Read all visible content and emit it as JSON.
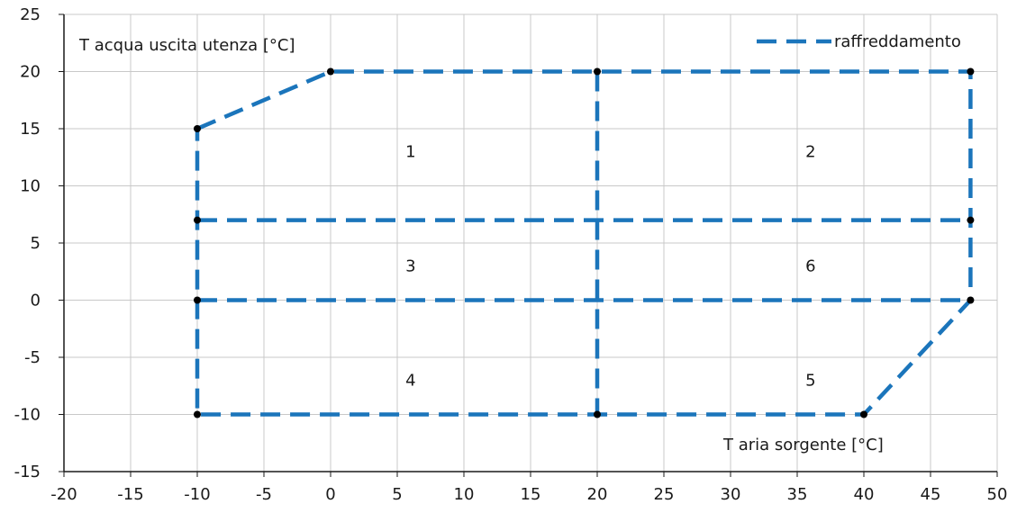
{
  "chart_data": {
    "type": "line",
    "xlabel": "T aria sorgente [°C]",
    "ylabel": "T acqua uscita utenza [°C]",
    "xlim": [
      -20,
      50
    ],
    "ylim": [
      -15,
      25
    ],
    "x_ticks": [
      -20,
      -15,
      -10,
      -5,
      0,
      5,
      10,
      15,
      20,
      25,
      30,
      35,
      40,
      45,
      50
    ],
    "x_tick_labels": [
      "-20",
      "-15",
      "-10",
      "-5",
      "0",
      "5",
      "10",
      "15",
      "20",
      "25",
      "30",
      "35",
      "40",
      "45",
      "50"
    ],
    "y_ticks": [
      -15,
      -10,
      -5,
      0,
      5,
      10,
      15,
      20,
      25
    ],
    "y_tick_labels": [
      "-15",
      "-10",
      "-5",
      "0",
      "5",
      "10",
      "15",
      "20",
      "25"
    ],
    "grid": true,
    "legend_position": "top-right",
    "series": [
      {
        "name": "raffreddamento",
        "color": "#1b75bb",
        "style": "dashed",
        "segments": [
          [
            [
              -10,
              15
            ],
            [
              0,
              20
            ],
            [
              48,
              20
            ],
            [
              48,
              0
            ],
            [
              40,
              -10
            ],
            [
              -10,
              -10
            ],
            [
              -10,
              15
            ]
          ],
          [
            [
              -10,
              7
            ],
            [
              48,
              7
            ]
          ],
          [
            [
              -10,
              0
            ],
            [
              48,
              0
            ]
          ],
          [
            [
              20,
              20
            ],
            [
              20,
              -10
            ]
          ]
        ],
        "markers": [
          [
            -10,
            15
          ],
          [
            0,
            20
          ],
          [
            20,
            20
          ],
          [
            48,
            20
          ],
          [
            -10,
            7
          ],
          [
            48,
            7
          ],
          [
            -10,
            0
          ],
          [
            48,
            0
          ],
          [
            -10,
            -10
          ],
          [
            20,
            -10
          ],
          [
            40,
            -10
          ]
        ]
      }
    ],
    "annotations": [
      {
        "text": "1",
        "x": 6,
        "y": 13
      },
      {
        "text": "2",
        "x": 36,
        "y": 13
      },
      {
        "text": "3",
        "x": 6,
        "y": 3
      },
      {
        "text": "6",
        "x": 36,
        "y": 3
      },
      {
        "text": "4",
        "x": 6,
        "y": -7
      },
      {
        "text": "5",
        "x": 36,
        "y": -7
      }
    ]
  }
}
